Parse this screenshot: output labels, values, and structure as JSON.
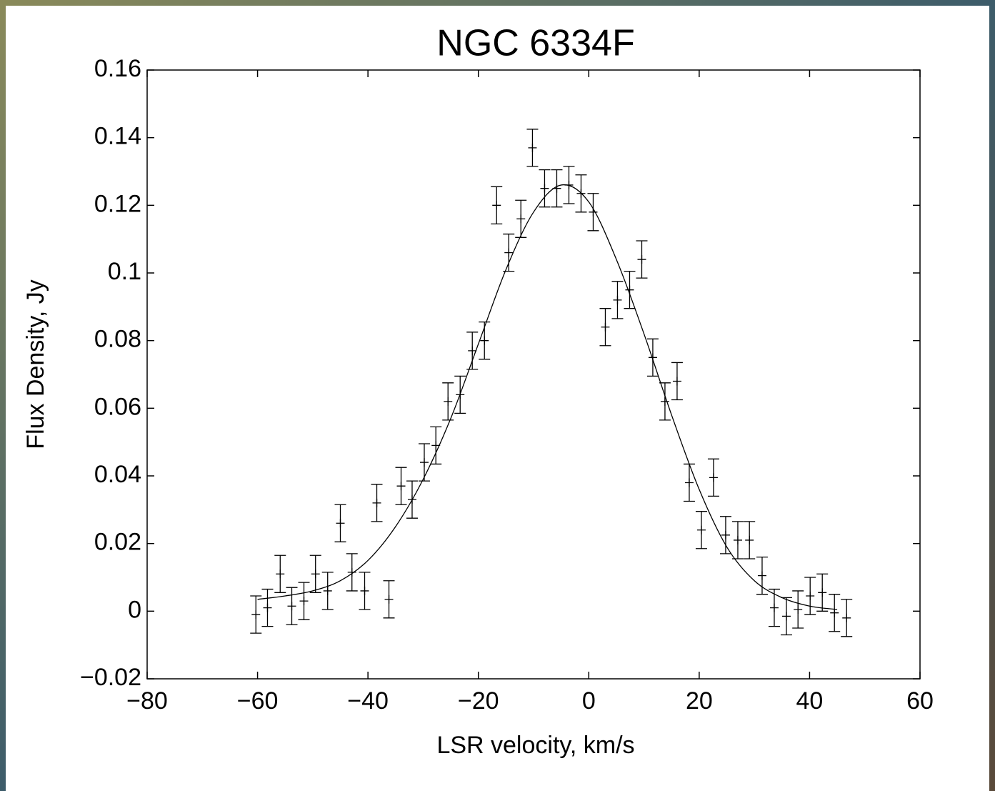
{
  "chart_data": {
    "type": "errorbar",
    "title": "NGC 6334F",
    "xlabel": "LSR velocity, km/s",
    "ylabel": "Flux Density, Jy",
    "x": [
      -60.3,
      -58.2,
      -55.9,
      -53.8,
      -51.6,
      -49.5,
      -47.3,
      -45.0,
      -42.9,
      -40.6,
      -38.4,
      -36.2,
      -34.0,
      -32.0,
      -29.8,
      -27.7,
      -25.5,
      -23.3,
      -21.1,
      -18.9,
      -16.7,
      -14.5,
      -12.3,
      -10.2,
      -8.0,
      -5.8,
      -3.6,
      -1.4,
      0.8,
      3.0,
      5.2,
      7.4,
      9.6,
      11.6,
      13.8,
      16.0,
      18.2,
      20.4,
      22.6,
      24.8,
      27.0,
      29.1,
      31.4,
      33.6,
      35.8,
      37.9,
      40.1,
      42.3,
      44.5,
      46.7
    ],
    "values": [
      -0.001,
      0.001,
      0.011,
      0.0015,
      0.003,
      0.011,
      0.006,
      0.026,
      0.0115,
      0.006,
      0.032,
      0.0035,
      0.037,
      0.033,
      0.044,
      0.049,
      0.062,
      0.064,
      0.077,
      0.08,
      0.12,
      0.106,
      0.116,
      0.137,
      0.125,
      0.125,
      0.126,
      0.1235,
      0.118,
      0.084,
      0.092,
      0.095,
      0.104,
      0.075,
      0.062,
      0.068,
      0.038,
      0.024,
      0.0395,
      0.0225,
      0.021,
      0.021,
      0.0105,
      0.001,
      -0.0015,
      0.0005,
      0.0045,
      0.0055,
      -0.0005,
      -0.002
    ],
    "errors": [
      0.0055,
      0.0055,
      0.0055,
      0.0055,
      0.0055,
      0.0055,
      0.0055,
      0.0055,
      0.0055,
      0.0055,
      0.0055,
      0.0055,
      0.0055,
      0.0055,
      0.0055,
      0.0055,
      0.0055,
      0.0055,
      0.0055,
      0.0055,
      0.0055,
      0.0055,
      0.0055,
      0.0055,
      0.0055,
      0.0055,
      0.0055,
      0.0055,
      0.0055,
      0.0055,
      0.0055,
      0.0055,
      0.0055,
      0.0055,
      0.0055,
      0.0055,
      0.0055,
      0.0055,
      0.0055,
      0.0055,
      0.0055,
      0.0055,
      0.0055,
      0.0055,
      0.0055,
      0.0055,
      0.0055,
      0.0055,
      0.0055,
      0.0055
    ],
    "fit": {
      "x": [
        -60,
        -55,
        -50,
        -45,
        -40,
        -35,
        -30,
        -25,
        -20,
        -15,
        -10,
        -5,
        0,
        5,
        10,
        15,
        20,
        25,
        30,
        35,
        40,
        45
      ],
      "values": [
        0.0035,
        0.0045,
        0.006,
        0.009,
        0.015,
        0.025,
        0.039,
        0.057,
        0.079,
        0.101,
        0.118,
        0.126,
        0.121,
        0.104,
        0.082,
        0.058,
        0.036,
        0.019,
        0.009,
        0.004,
        0.0015,
        0.0005
      ]
    },
    "color": "#000000",
    "xlim": [
      -80,
      60
    ],
    "xticks": [
      {
        "value": -80,
        "label": "−80"
      },
      {
        "value": -60,
        "label": "−60"
      },
      {
        "value": -40,
        "label": "−40"
      },
      {
        "value": -20,
        "label": "−20"
      },
      0,
      20,
      40,
      60
    ],
    "ylim": [
      -0.02,
      0.16
    ],
    "yticks": [
      {
        "value": -0.02,
        "label": "−0.02"
      },
      0,
      0.02,
      0.04,
      0.06,
      0.08,
      0.1,
      0.12,
      0.14,
      0.16
    ],
    "grid": false
  }
}
